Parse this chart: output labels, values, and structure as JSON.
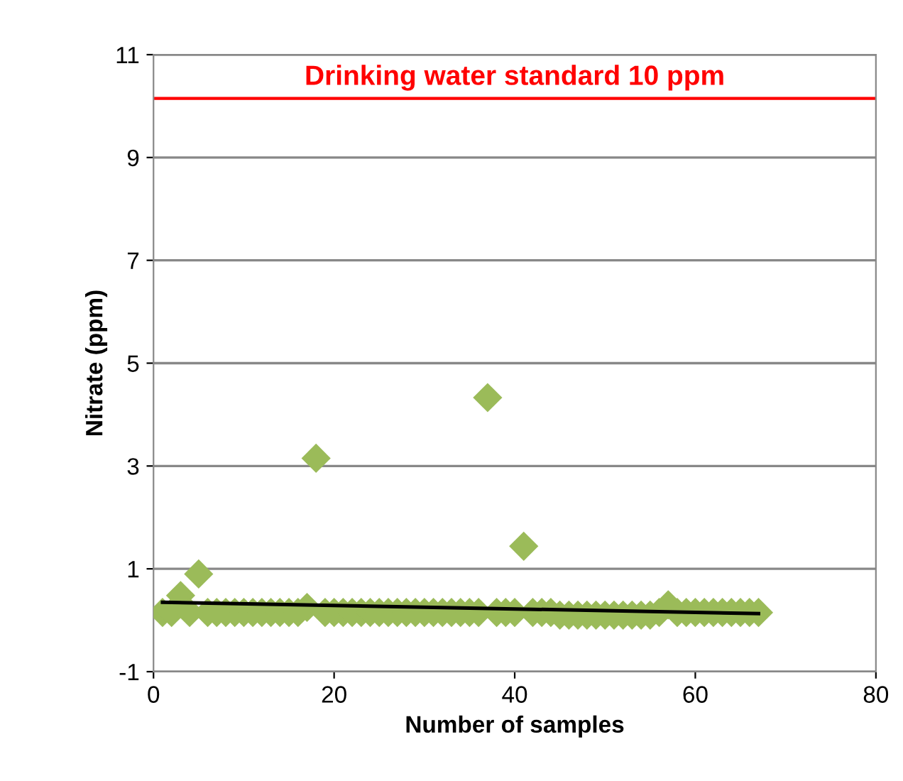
{
  "chart_data": {
    "type": "scatter",
    "xlabel": "Number of samples",
    "ylabel": "Nitrate (ppm)",
    "xlim": [
      0,
      80
    ],
    "xticks": [
      0,
      20,
      40,
      60,
      80
    ],
    "ylim": [
      -1,
      11
    ],
    "yticks": [
      -1,
      1,
      3,
      5,
      7,
      9,
      11
    ],
    "grid": "y",
    "series": [
      {
        "color": "#9bbb59",
        "marker": "diamond",
        "x": [
          1,
          2,
          3,
          4,
          5,
          6,
          7,
          8,
          9,
          10,
          11,
          12,
          13,
          14,
          15,
          16,
          17,
          18,
          19,
          20,
          21,
          22,
          23,
          24,
          25,
          26,
          27,
          28,
          29,
          30,
          31,
          32,
          33,
          34,
          35,
          36,
          37,
          38,
          39,
          40,
          41,
          42,
          43,
          44,
          45,
          46,
          47,
          48,
          49,
          50,
          51,
          52,
          53,
          54,
          55,
          56,
          57,
          58,
          59,
          60,
          61,
          62,
          63,
          64,
          65,
          66,
          67
        ],
        "values": [
          0.15,
          0.15,
          0.48,
          0.15,
          0.9,
          0.15,
          0.15,
          0.15,
          0.15,
          0.15,
          0.15,
          0.15,
          0.15,
          0.15,
          0.15,
          0.15,
          0.25,
          3.15,
          0.15,
          0.15,
          0.15,
          0.15,
          0.15,
          0.15,
          0.15,
          0.15,
          0.15,
          0.15,
          0.15,
          0.15,
          0.15,
          0.15,
          0.15,
          0.15,
          0.15,
          0.15,
          4.33,
          0.15,
          0.15,
          0.15,
          1.44,
          0.15,
          0.15,
          0.15,
          0.1,
          0.1,
          0.1,
          0.1,
          0.1,
          0.1,
          0.1,
          0.1,
          0.1,
          0.1,
          0.1,
          0.15,
          0.3,
          0.15,
          0.15,
          0.15,
          0.15,
          0.15,
          0.15,
          0.15,
          0.15,
          0.15,
          0.15
        ]
      },
      {
        "type": "line",
        "marker": "none",
        "color": "#000000",
        "x": [
          1,
          67
        ],
        "values": [
          0.35,
          0.13
        ]
      }
    ],
    "ref_lines": [
      {
        "axis": "y",
        "value": 10.15,
        "label": "Drinking water standard 10 ppm",
        "color": "#ff0000"
      }
    ]
  }
}
